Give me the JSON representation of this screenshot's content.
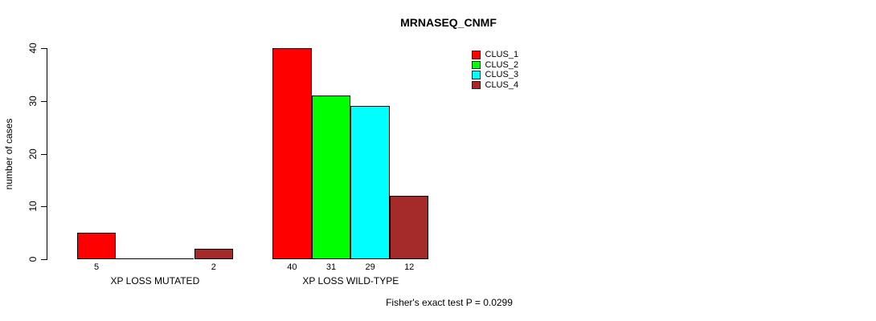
{
  "chart_data": {
    "type": "bar",
    "title": "MRNASEQ_CNMF",
    "ylabel": "number of cases",
    "xlabel": "",
    "ylim": [
      0,
      40
    ],
    "yticks": [
      0,
      10,
      20,
      30,
      40
    ],
    "grid": false,
    "legend_position": "top-right",
    "categories": [
      "XP LOSS MUTATED",
      "XP LOSS WILD-TYPE"
    ],
    "series": [
      {
        "name": "CLUS_1",
        "color": "#FF0000",
        "values": [
          5,
          40
        ]
      },
      {
        "name": "CLUS_2",
        "color": "#00FF00",
        "values": [
          0,
          31
        ]
      },
      {
        "name": "CLUS_3",
        "color": "#00FFFF",
        "values": [
          0,
          29
        ]
      },
      {
        "name": "CLUS_4",
        "color": "#A52A2A",
        "values": [
          2,
          12
        ]
      }
    ],
    "visible_value_labels": [
      "5",
      "2",
      "40",
      "31",
      "29",
      "12"
    ],
    "annotation": "Fisher's exact test P = 0.0299"
  }
}
